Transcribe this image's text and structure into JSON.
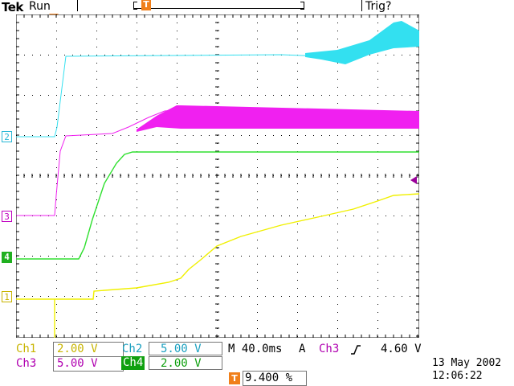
{
  "header": {
    "brand": "Tek",
    "state": "Run",
    "trigger_status": "Trig?"
  },
  "trigger_marker": {
    "label": "T"
  },
  "channel_markers": [
    {
      "label": "2",
      "color": "#29b7d6"
    },
    {
      "label": "3",
      "color": "#c000c0"
    },
    {
      "label": "4",
      "color": "#20b020"
    },
    {
      "label": "1",
      "color": "#c8b400"
    }
  ],
  "trace_colors": {
    "ch1": "#f0f000",
    "ch2": "#33e0f0",
    "ch3": "#f020f0",
    "ch4": "#30e030"
  },
  "readouts": {
    "ch1": {
      "name": "Ch1",
      "value": "2.00 V",
      "color": "#c8b400"
    },
    "ch2": {
      "name": "Ch2",
      "value": "5.00 V",
      "color": "#1aa0c0"
    },
    "ch3": {
      "name": "Ch3",
      "value": "5.00 V",
      "color": "#b000b0"
    },
    "ch4": {
      "name": "Ch4",
      "value": "2.00 V",
      "color": "#ffffff",
      "bg": "#10a010"
    },
    "timebase": "M 40.0ms",
    "trigger_mode": "A",
    "trigger_source": "Ch3",
    "trigger_slope_icon": "rising-edge-icon",
    "trigger_level": "4.60 V",
    "trigger_position_marker": "T",
    "trigger_position": "9.400 %"
  },
  "datetime": {
    "date": "13 May 2002",
    "time": "12:06:22"
  }
}
